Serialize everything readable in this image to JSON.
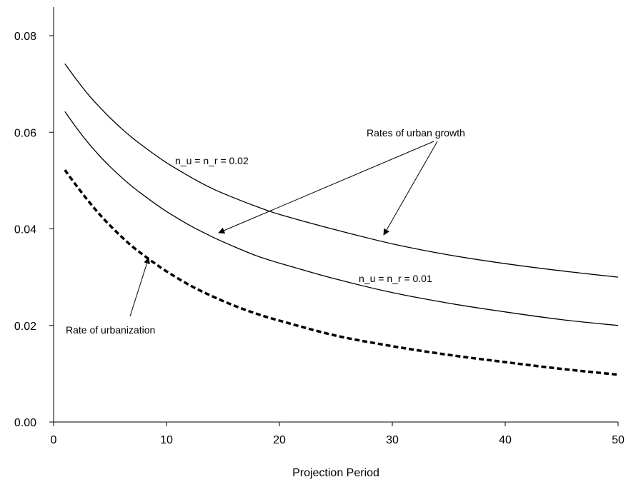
{
  "chart_data": {
    "type": "line",
    "title": "",
    "xlabel": "Projection Period",
    "ylabel": "",
    "xlim": [
      0,
      50
    ],
    "ylim": [
      0,
      0.08
    ],
    "x_ticks": [
      "0",
      "10",
      "20",
      "30",
      "40",
      "50"
    ],
    "y_ticks": [
      "0.00",
      "0.02",
      "0.04",
      "0.06",
      "0.08"
    ],
    "grid": false,
    "legend": "none",
    "x": [
      1,
      2,
      3,
      4,
      5,
      6,
      7,
      8,
      9,
      10,
      12,
      14,
      16,
      18,
      20,
      25,
      30,
      35,
      40,
      45,
      50
    ],
    "series": [
      {
        "style": "solid",
        "color": "#000000",
        "values": [
          0.0742,
          0.071,
          0.068,
          0.0654,
          0.063,
          0.0608,
          0.0588,
          0.057,
          0.0553,
          0.0537,
          0.0509,
          0.0484,
          0.0464,
          0.0446,
          0.043,
          0.0398,
          0.0369,
          0.0346,
          0.0328,
          0.0313,
          0.03
        ]
      },
      {
        "style": "solid",
        "color": "#000000",
        "values": [
          0.0643,
          0.061,
          0.058,
          0.0553,
          0.0529,
          0.0507,
          0.0487,
          0.0469,
          0.0452,
          0.0436,
          0.0408,
          0.0384,
          0.0363,
          0.0344,
          0.0329,
          0.0296,
          0.0268,
          0.0246,
          0.0228,
          0.0212,
          0.02
        ]
      },
      {
        "style": "dashed",
        "color": "#000000",
        "values": [
          0.0522,
          0.049,
          0.046,
          0.0432,
          0.0407,
          0.0384,
          0.0363,
          0.0345,
          0.0328,
          0.0312,
          0.0284,
          0.0261,
          0.0241,
          0.0224,
          0.021,
          0.0179,
          0.0157,
          0.0139,
          0.0124,
          0.011,
          0.0098
        ]
      }
    ],
    "annotations": {
      "growth_label": "Rates of urban growth",
      "high_label": "n_u = n_r = 0.02",
      "low_label": "n_u = n_r = 0.01",
      "urbanization_label": "Rate of urbanization"
    }
  }
}
